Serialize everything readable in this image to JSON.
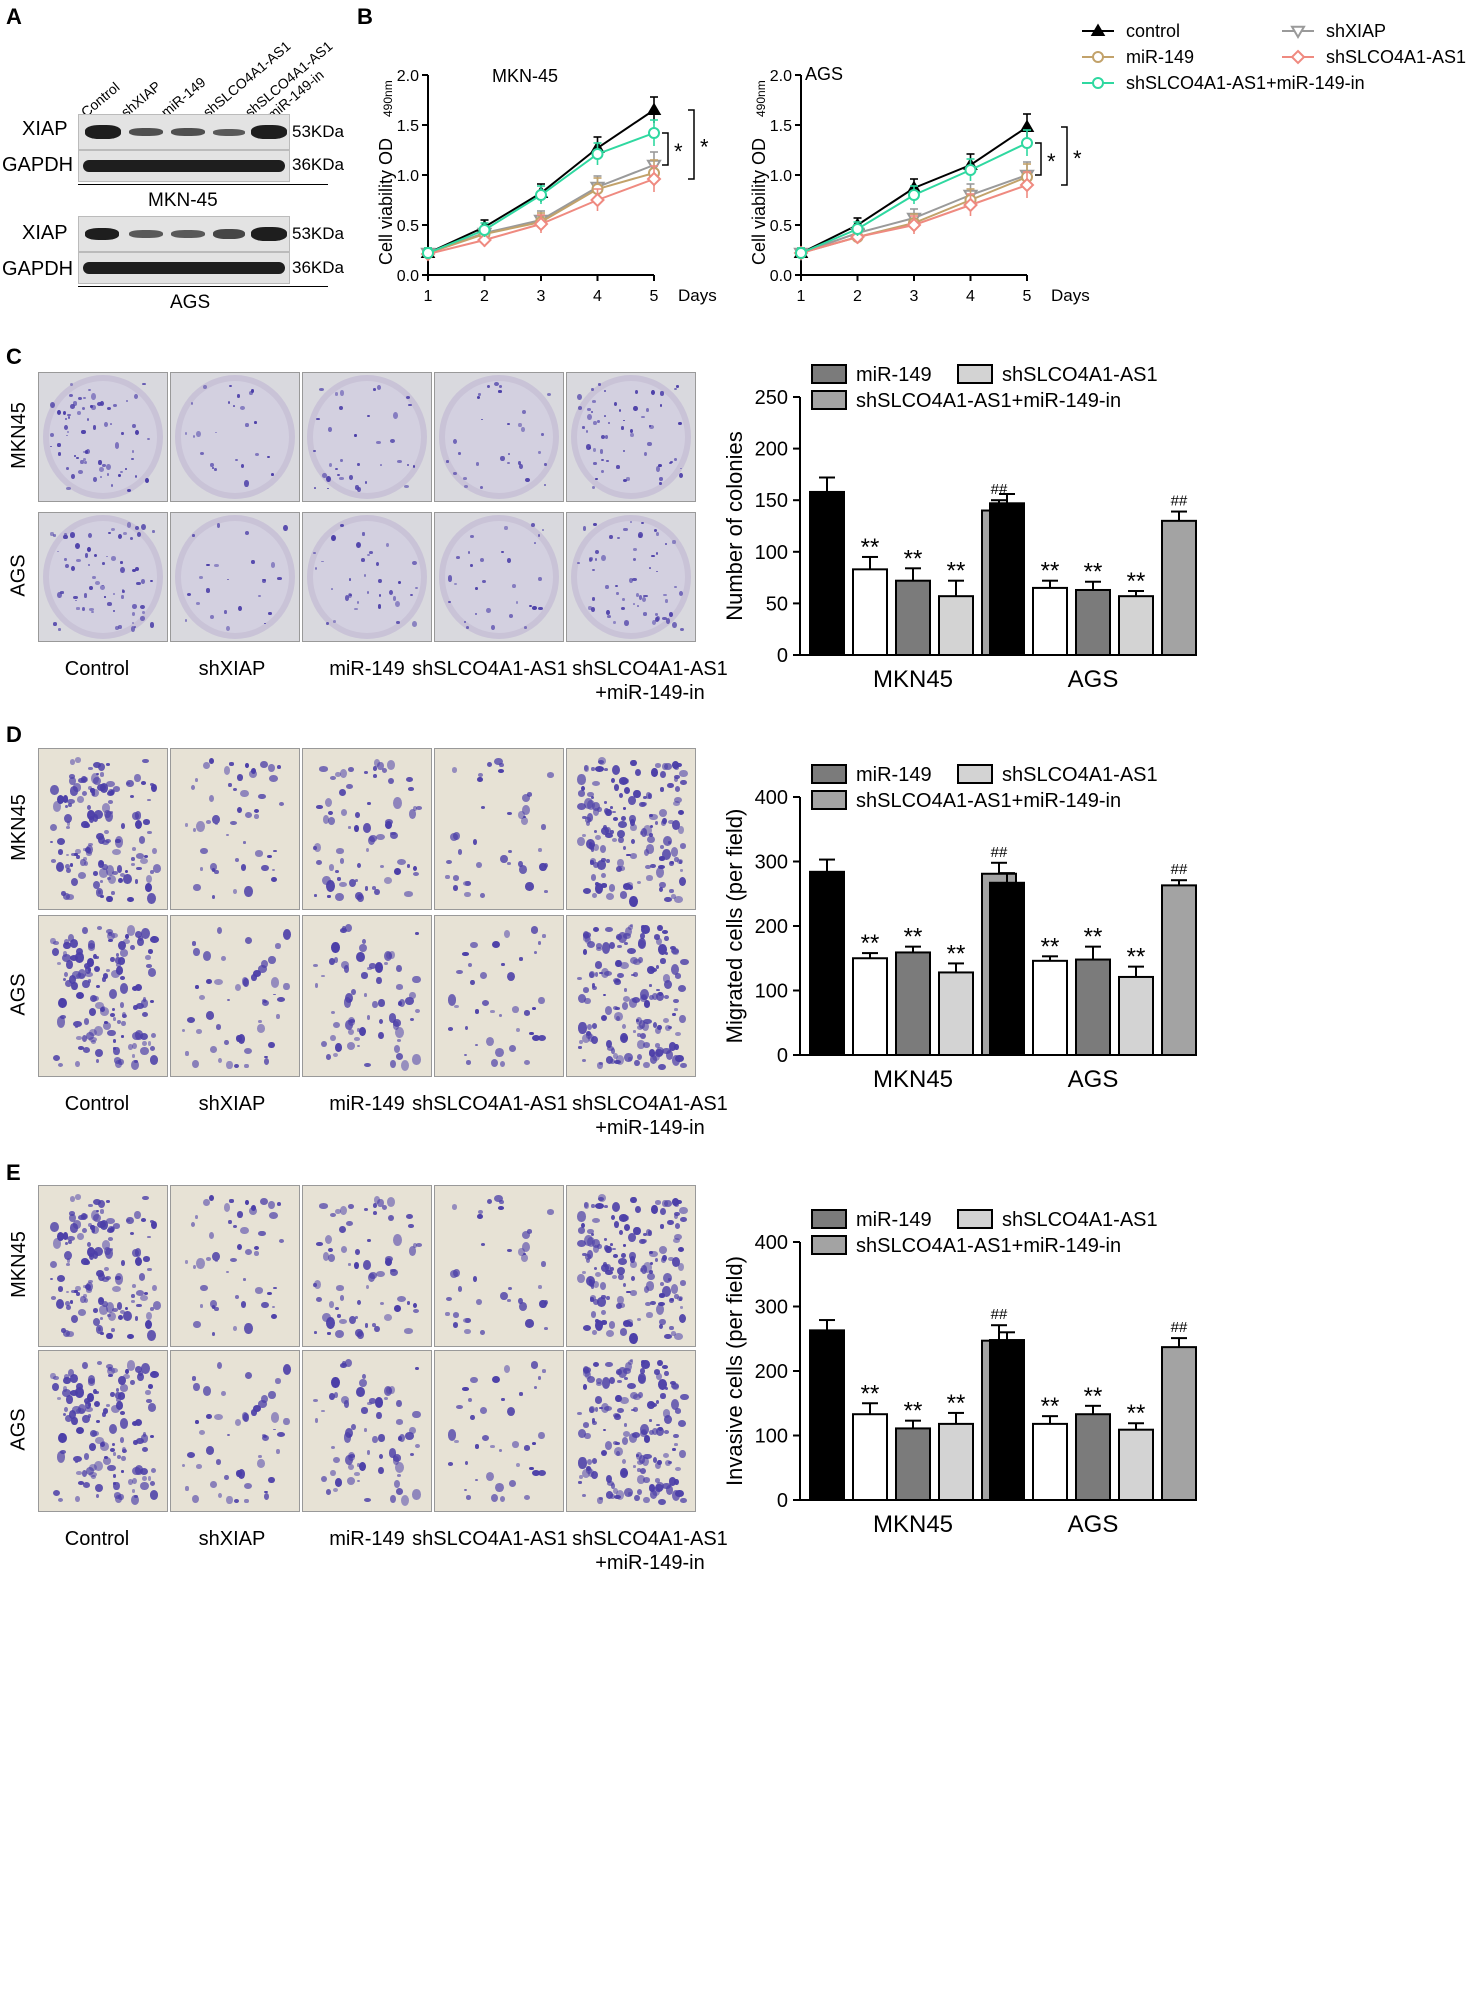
{
  "panels": {
    "A": "A",
    "B": "B",
    "C": "C",
    "D": "D",
    "E": "E"
  },
  "blot": {
    "lanes": [
      "Control",
      "shXIAP",
      "miR-149",
      "shSLCO4A1-AS1",
      "shSLCO4A1-AS1\n+miR-149-in"
    ],
    "lanes_simple": [
      "Control",
      "shXIAP",
      "miR-149",
      "shSLCO4A1-AS1"
    ],
    "lane5_line1": "shSLCO4A1-AS1",
    "lane5_line2": "+miR-149-in",
    "rows": [
      {
        "protein": "XIAP",
        "kda": "53KDa"
      },
      {
        "protein": "GAPDH",
        "kda": "36KDa"
      }
    ],
    "cell1": "MKN-45",
    "cell2": "AGS"
  },
  "photos": {
    "row_labels": [
      "MKN45",
      "AGS"
    ],
    "cond_labels": [
      "Control",
      "shXIAP",
      "miR-149",
      "shSLCO4A1-AS1"
    ],
    "cond5_line1": "shSLCO4A1-AS1",
    "cond5_line2": "+miR-149-in"
  },
  "chart_data": [
    {
      "type": "line",
      "title": "MKN-45",
      "xlabel": "Days",
      "ylabel": "Cell viability OD",
      "ylabel_sub": "490nm",
      "x": [
        1,
        2,
        3,
        4,
        5
      ],
      "xlim": [
        1,
        5
      ],
      "ylim": [
        0,
        2.0
      ],
      "yticks": [
        "0.0",
        "0.5",
        "1.0",
        "1.5",
        "2.0"
      ],
      "series": [
        {
          "name": "control",
          "color": "#000000",
          "marker": "triangle-up",
          "values": [
            0.22,
            0.48,
            0.82,
            1.27,
            1.65
          ]
        },
        {
          "name": "shXIAP",
          "color": "#9a9a9a",
          "marker": "triangle-down",
          "values": [
            0.22,
            0.42,
            0.55,
            0.88,
            1.1
          ]
        },
        {
          "name": "miR-149",
          "color": "#c2a26a",
          "marker": "circle",
          "values": [
            0.22,
            0.41,
            0.53,
            0.86,
            1.02
          ]
        },
        {
          "name": "shSLCO4A1-AS1",
          "color": "#ef8a80",
          "marker": "diamond",
          "values": [
            0.21,
            0.35,
            0.51,
            0.75,
            0.96
          ]
        },
        {
          "name": "shSLCO4A1-AS1+miR-149-in",
          "color": "#2fd8a0",
          "marker": "circle",
          "values": [
            0.22,
            0.45,
            0.8,
            1.21,
            1.42
          ]
        }
      ],
      "annotations": [
        "*",
        "*"
      ]
    },
    {
      "type": "line",
      "title": "AGS",
      "xlabel": "Days",
      "ylabel": "Cell viability OD",
      "ylabel_sub": "490nm",
      "x": [
        1,
        2,
        3,
        4,
        5
      ],
      "xlim": [
        1,
        5
      ],
      "ylim": [
        0,
        2.0
      ],
      "yticks": [
        "0.0",
        "0.5",
        "1.0",
        "1.5",
        "2.0"
      ],
      "series": [
        {
          "name": "control",
          "color": "#000000",
          "marker": "triangle-up",
          "values": [
            0.22,
            0.5,
            0.87,
            1.1,
            1.48
          ]
        },
        {
          "name": "shXIAP",
          "color": "#9a9a9a",
          "marker": "triangle-down",
          "values": [
            0.22,
            0.42,
            0.57,
            0.8,
            1.0
          ]
        },
        {
          "name": "miR-149",
          "color": "#c2a26a",
          "marker": "circle",
          "values": [
            0.22,
            0.38,
            0.52,
            0.75,
            0.98
          ]
        },
        {
          "name": "shSLCO4A1-AS1",
          "color": "#ef8a80",
          "marker": "diamond",
          "values": [
            0.22,
            0.38,
            0.5,
            0.7,
            0.9
          ]
        },
        {
          "name": "shSLCO4A1-AS1+miR-149-in",
          "color": "#2fd8a0",
          "marker": "circle",
          "values": [
            0.22,
            0.46,
            0.8,
            1.05,
            1.32
          ]
        }
      ],
      "annotations": [
        "*",
        "*"
      ]
    },
    {
      "type": "bar",
      "ylabel": "Number of colonies",
      "categories": [
        "MKN45",
        "AGS"
      ],
      "ylim": [
        0,
        250
      ],
      "yticks": [
        "0",
        "50",
        "100",
        "150",
        "200",
        "250"
      ],
      "series": [
        {
          "name": "Control",
          "color": "#000000",
          "values": [
            158,
            147
          ],
          "errors": [
            14,
            9
          ],
          "marks": [
            "",
            ""
          ]
        },
        {
          "name": "shXIAP",
          "color": "#ffffff",
          "values": [
            83,
            65
          ],
          "errors": [
            12,
            7
          ],
          "marks": [
            "**",
            "**"
          ]
        },
        {
          "name": "miR-149",
          "color": "#7b7b7b",
          "values": [
            72,
            63
          ],
          "errors": [
            12,
            8
          ],
          "marks": [
            "**",
            "**"
          ]
        },
        {
          "name": "shSLCO4A1-AS1",
          "color": "#d3d3d3",
          "values": [
            57,
            57
          ],
          "errors": [
            15,
            5
          ],
          "marks": [
            "**",
            "**"
          ]
        },
        {
          "name": "shSLCO4A1-AS1+miR-149-in",
          "color": "#a3a3a3",
          "values": [
            140,
            130
          ],
          "errors": [
            10,
            9
          ],
          "marks": [
            "##",
            "##"
          ]
        }
      ]
    },
    {
      "type": "bar",
      "ylabel": "Migrated cells (per field)",
      "categories": [
        "MKN45",
        "AGS"
      ],
      "ylim": [
        0,
        400
      ],
      "yticks": [
        "0",
        "100",
        "200",
        "300",
        "400"
      ],
      "series": [
        {
          "name": "Control",
          "color": "#000000",
          "values": [
            284,
            267
          ],
          "errors": [
            19,
            15
          ],
          "marks": [
            "",
            ""
          ]
        },
        {
          "name": "shXIAP",
          "color": "#ffffff",
          "values": [
            150,
            146
          ],
          "errors": [
            8,
            7
          ],
          "marks": [
            "**",
            "**"
          ]
        },
        {
          "name": "miR-149",
          "color": "#7b7b7b",
          "values": [
            159,
            148
          ],
          "errors": [
            9,
            20
          ],
          "marks": [
            "**",
            "**"
          ]
        },
        {
          "name": "shSLCO4A1-AS1",
          "color": "#d3d3d3",
          "values": [
            128,
            121
          ],
          "errors": [
            14,
            16
          ],
          "marks": [
            "**",
            "**"
          ]
        },
        {
          "name": "shSLCO4A1-AS1+miR-149-in",
          "color": "#a3a3a3",
          "values": [
            281,
            263
          ],
          "errors": [
            17,
            8
          ],
          "marks": [
            "##",
            "##"
          ]
        }
      ]
    },
    {
      "type": "bar",
      "ylabel": "Invasive cells (per field)",
      "categories": [
        "MKN45",
        "AGS"
      ],
      "ylim": [
        0,
        400
      ],
      "yticks": [
        "0",
        "100",
        "200",
        "300",
        "400"
      ],
      "series": [
        {
          "name": "Control",
          "color": "#000000",
          "values": [
            263,
            248
          ],
          "errors": [
            16,
            12
          ],
          "marks": [
            "",
            ""
          ]
        },
        {
          "name": "shXIAP",
          "color": "#ffffff",
          "values": [
            133,
            118
          ],
          "errors": [
            17,
            12
          ],
          "marks": [
            "**",
            "**"
          ]
        },
        {
          "name": "miR-149",
          "color": "#7b7b7b",
          "values": [
            111,
            133
          ],
          "errors": [
            12,
            13
          ],
          "marks": [
            "**",
            "**"
          ]
        },
        {
          "name": "shSLCO4A1-AS1",
          "color": "#d3d3d3",
          "values": [
            118,
            109
          ],
          "errors": [
            17,
            10
          ],
          "marks": [
            "**",
            "**"
          ]
        },
        {
          "name": "shSLCO4A1-AS1+miR-149-in",
          "color": "#a3a3a3",
          "values": [
            247,
            237
          ],
          "errors": [
            24,
            14
          ],
          "marks": [
            "##",
            "##"
          ]
        }
      ]
    }
  ]
}
